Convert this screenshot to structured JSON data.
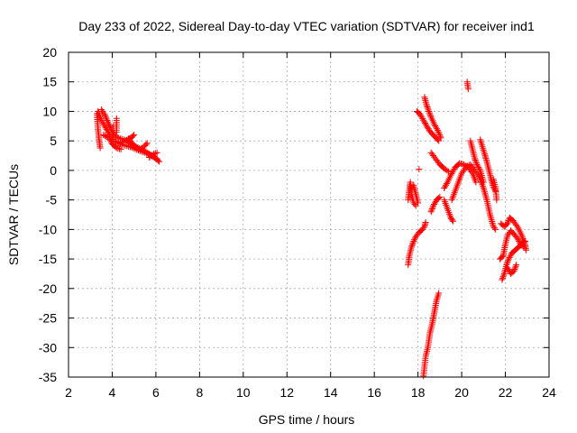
{
  "chart_data": {
    "type": "scatter",
    "title": "Day 233 of 2022, Sidereal Day-to-day VTEC variation (SDTVAR) for receiver ind1",
    "xlabel": "GPS time / hours",
    "ylabel": "SDTVAR / TECUs",
    "xlim": [
      2,
      24
    ],
    "ylim": [
      -35,
      20
    ],
    "xticks": [
      2,
      4,
      6,
      8,
      10,
      12,
      14,
      16,
      18,
      20,
      22,
      24
    ],
    "yticks": [
      -35,
      -30,
      -25,
      -20,
      -15,
      -10,
      -5,
      0,
      5,
      10,
      15,
      20
    ],
    "grid": true,
    "marker": "+",
    "color": "#ff0000",
    "series": [
      {
        "name": "SDTVAR",
        "segments": [
          [
            [
              3.35,
              10.0
            ],
            [
              3.5,
              8.5
            ],
            [
              3.7,
              7.2
            ],
            [
              3.9,
              6.0
            ],
            [
              4.1,
              5.0
            ],
            [
              4.3,
              4.6
            ],
            [
              4.6,
              4.2
            ],
            [
              4.9,
              3.9
            ],
            [
              5.2,
              3.4
            ],
            [
              5.5,
              3.0
            ],
            [
              5.8,
              2.5
            ],
            [
              6.05,
              2.0
            ]
          ],
          [
            [
              3.3,
              9.6
            ],
            [
              3.35,
              7.0
            ],
            [
              3.4,
              5.2
            ],
            [
              3.45,
              3.8
            ]
          ],
          [
            [
              3.5,
              10.3
            ],
            [
              3.65,
              9.5
            ],
            [
              3.8,
              8.2
            ],
            [
              3.95,
              7.0
            ],
            [
              4.1,
              6.0
            ],
            [
              4.3,
              5.5
            ],
            [
              4.55,
              5.2
            ],
            [
              4.8,
              4.6
            ],
            [
              5.1,
              4.0
            ],
            [
              5.4,
              3.5
            ],
            [
              5.7,
              2.8
            ],
            [
              6.0,
              2.0
            ],
            [
              6.15,
              1.5
            ]
          ],
          [
            [
              3.6,
              6.0
            ],
            [
              3.85,
              5.5
            ],
            [
              4.0,
              4.5
            ],
            [
              4.2,
              3.8
            ],
            [
              4.4,
              3.6
            ]
          ],
          [
            [
              4.3,
              4.6
            ],
            [
              4.6,
              5.0
            ],
            [
              4.85,
              5.5
            ],
            [
              5.0,
              6.0
            ]
          ],
          [
            [
              4.75,
              5.4
            ],
            [
              5.0,
              4.2
            ],
            [
              5.2,
              3.6
            ]
          ],
          [
            [
              5.3,
              3.6
            ],
            [
              5.5,
              4.2
            ],
            [
              5.6,
              4.6
            ]
          ],
          [
            [
              5.7,
              2.2
            ],
            [
              5.9,
              2.8
            ],
            [
              6.05,
              3.0
            ]
          ],
          [
            [
              4.2,
              8.8
            ],
            [
              4.2,
              6.5
            ]
          ],
          [
            [
              4.05,
              7.5
            ]
          ],
          [
            [
              17.55,
              -16.0
            ],
            [
              17.6,
              -14.5
            ],
            [
              17.7,
              -13.0
            ],
            [
              17.8,
              -12.0
            ],
            [
              17.9,
              -11.2
            ],
            [
              18.05,
              -10.5
            ],
            [
              18.2,
              -10.0
            ],
            [
              18.3,
              -9.5
            ],
            [
              18.35,
              -8.8
            ]
          ],
          [
            [
              17.55,
              -5.0
            ],
            [
              17.6,
              -3.5
            ],
            [
              17.65,
              -2.0
            ],
            [
              17.7,
              -4.0
            ],
            [
              17.8,
              -5.5
            ],
            [
              17.9,
              -6.0
            ]
          ],
          [
            [
              17.8,
              -2.5
            ],
            [
              17.9,
              -4.0
            ],
            [
              18.0,
              -5.5
            ]
          ],
          [
            [
              17.95,
              10.0
            ],
            [
              18.1,
              9.5
            ],
            [
              18.25,
              8.5
            ],
            [
              18.4,
              7.5
            ],
            [
              18.55,
              6.6
            ],
            [
              18.75,
              5.8
            ],
            [
              18.95,
              5.0
            ]
          ],
          [
            [
              18.3,
              12.4
            ],
            [
              18.4,
              11.0
            ],
            [
              18.5,
              10.0
            ],
            [
              18.6,
              9.0
            ],
            [
              18.75,
              7.8
            ],
            [
              18.9,
              6.8
            ],
            [
              19.05,
              5.5
            ]
          ],
          [
            [
              18.05,
              0.2
            ]
          ],
          [
            [
              18.6,
              3.0
            ],
            [
              18.8,
              2.0
            ],
            [
              19.0,
              1.0
            ],
            [
              19.2,
              0.3
            ],
            [
              19.4,
              -0.2
            ]
          ],
          [
            [
              18.6,
              -7.0
            ],
            [
              18.7,
              -6.0
            ],
            [
              18.85,
              -5.0
            ],
            [
              19.0,
              -4.5
            ]
          ],
          [
            [
              18.25,
              -34.8
            ],
            [
              18.35,
              -31.5
            ],
            [
              18.45,
              -30.0
            ],
            [
              18.55,
              -27.5
            ],
            [
              18.65,
              -26.0
            ],
            [
              18.75,
              -24.0
            ],
            [
              18.85,
              -22.0
            ],
            [
              18.95,
              -20.8
            ]
          ],
          [
            [
              19.2,
              -3.0
            ],
            [
              19.35,
              -2.0
            ],
            [
              19.5,
              -0.8
            ],
            [
              19.7,
              0.5
            ],
            [
              19.9,
              1.2
            ],
            [
              20.1,
              1.0
            ],
            [
              20.3,
              0.5
            ],
            [
              20.5,
              -0.5
            ],
            [
              20.65,
              -2.0
            ]
          ],
          [
            [
              19.55,
              -5.0
            ],
            [
              19.7,
              -3.5
            ],
            [
              19.85,
              -2.0
            ],
            [
              20.0,
              -0.5
            ],
            [
              20.2,
              0.6
            ],
            [
              20.4,
              1.0
            ],
            [
              20.6,
              0.0
            ],
            [
              20.8,
              -1.0
            ],
            [
              21.0,
              -3.0
            ],
            [
              21.15,
              -5.0
            ],
            [
              21.3,
              -7.5
            ],
            [
              21.45,
              -9.5
            ],
            [
              21.55,
              -10.0
            ]
          ],
          [
            [
              19.2,
              -5.0
            ],
            [
              19.35,
              -6.5
            ],
            [
              19.5,
              -8.0
            ],
            [
              19.6,
              -8.6
            ]
          ],
          [
            [
              20.4,
              5.0
            ],
            [
              20.5,
              3.5
            ],
            [
              20.6,
              2.0
            ],
            [
              20.7,
              1.0
            ],
            [
              20.85,
              0.0
            ],
            [
              21.0,
              -2.0
            ]
          ],
          [
            [
              20.85,
              5.2
            ],
            [
              20.95,
              4.0
            ],
            [
              21.05,
              2.8
            ],
            [
              21.15,
              1.5
            ],
            [
              21.25,
              0.0
            ],
            [
              21.35,
              -1.5
            ],
            [
              21.45,
              -2.8
            ],
            [
              21.55,
              -3.5
            ]
          ],
          [
            [
              20.25,
              15.0
            ],
            [
              20.3,
              13.8
            ]
          ],
          [
            [
              21.45,
              -1.5
            ],
            [
              21.55,
              -3.0
            ],
            [
              21.6,
              -5.0
            ]
          ],
          [
            [
              21.8,
              -9.0
            ],
            [
              21.95,
              -9.5
            ],
            [
              22.1,
              -9.0
            ],
            [
              22.2,
              -8.0
            ],
            [
              22.35,
              -8.5
            ],
            [
              22.55,
              -9.5
            ],
            [
              22.75,
              -11.0
            ],
            [
              22.9,
              -12.5
            ],
            [
              22.95,
              -13.5
            ]
          ],
          [
            [
              21.85,
              -18.5
            ],
            [
              21.95,
              -17.5
            ],
            [
              22.05,
              -16.0
            ],
            [
              22.15,
              -15.0
            ],
            [
              22.3,
              -14.0
            ],
            [
              22.45,
              -13.5
            ],
            [
              22.6,
              -13.0
            ],
            [
              22.75,
              -12.5
            ],
            [
              22.9,
              -12.0
            ]
          ],
          [
            [
              21.75,
              -15.0
            ],
            [
              21.9,
              -14.5
            ],
            [
              22.0,
              -12.5
            ],
            [
              22.1,
              -11.0
            ],
            [
              22.25,
              -10.2
            ],
            [
              22.4,
              -10.8
            ],
            [
              22.55,
              -11.5
            ],
            [
              22.7,
              -12.5
            ],
            [
              22.85,
              -13.0
            ]
          ],
          [
            [
              22.1,
              -16.5
            ],
            [
              22.25,
              -17.5
            ],
            [
              22.4,
              -17.0
            ],
            [
              22.5,
              -16.0
            ]
          ]
        ]
      }
    ]
  }
}
